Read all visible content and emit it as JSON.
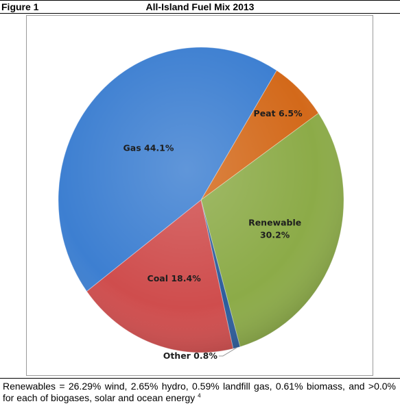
{
  "figure": {
    "label": "Figure 1",
    "title": "All-Island Fuel Mix 2013"
  },
  "chart_data": {
    "type": "pie",
    "title": "All-Island Fuel Mix 2013",
    "slices": [
      {
        "label": "Peat",
        "value": 6.5,
        "display": "Peat 6.5%",
        "color": "#d3691a"
      },
      {
        "label": "Renewable",
        "value": 30.2,
        "display": "Renewable 30.2%",
        "color": "#8cab48"
      },
      {
        "label": "Other",
        "value": 0.8,
        "display": "Other 0.8%",
        "color": "#2d5d9c"
      },
      {
        "label": "Coal",
        "value": 18.4,
        "display": "Coal 18.4%",
        "color": "#cf4d4d"
      },
      {
        "label": "Gas",
        "value": 44.1,
        "display": "Gas 44.1%",
        "color": "#3d7fd1"
      }
    ]
  },
  "footnote": {
    "text": "Renewables = 26.29% wind, 2.65% hydro, 0.59% landfill gas, 0.61% biomass,  and >0.0% for each of biogases, solar and ocean energy",
    "ref": "4"
  }
}
